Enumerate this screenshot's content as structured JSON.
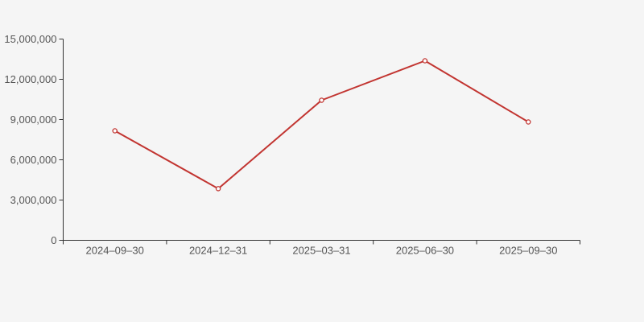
{
  "chart_data": {
    "type": "line",
    "title": "",
    "xlabel": "",
    "ylabel": "",
    "categories": [
      "2024–09–30",
      "2024–12–31",
      "2025–03–31",
      "2025–06–30",
      "2025–09–30"
    ],
    "series": [
      {
        "name": "series-1",
        "values": [
          8160000,
          3850000,
          10440000,
          13380000,
          8820000
        ]
      }
    ],
    "ylim": [
      0,
      15000000
    ],
    "y_ticks": [
      0,
      3000000,
      6000000,
      9000000,
      12000000,
      15000000
    ],
    "y_tick_labels": [
      "0",
      "3,000,000",
      "6,000,000",
      "9,000,000",
      "12,000,000",
      "15,000,000"
    ],
    "grid": false,
    "legend_position": "none",
    "marker": "hollow-circle",
    "colors": {
      "background": "#f5f5f5",
      "line": "#c23531",
      "marker_fill": "#fdfdfd",
      "axis": "#333333",
      "label": "#555555"
    }
  }
}
